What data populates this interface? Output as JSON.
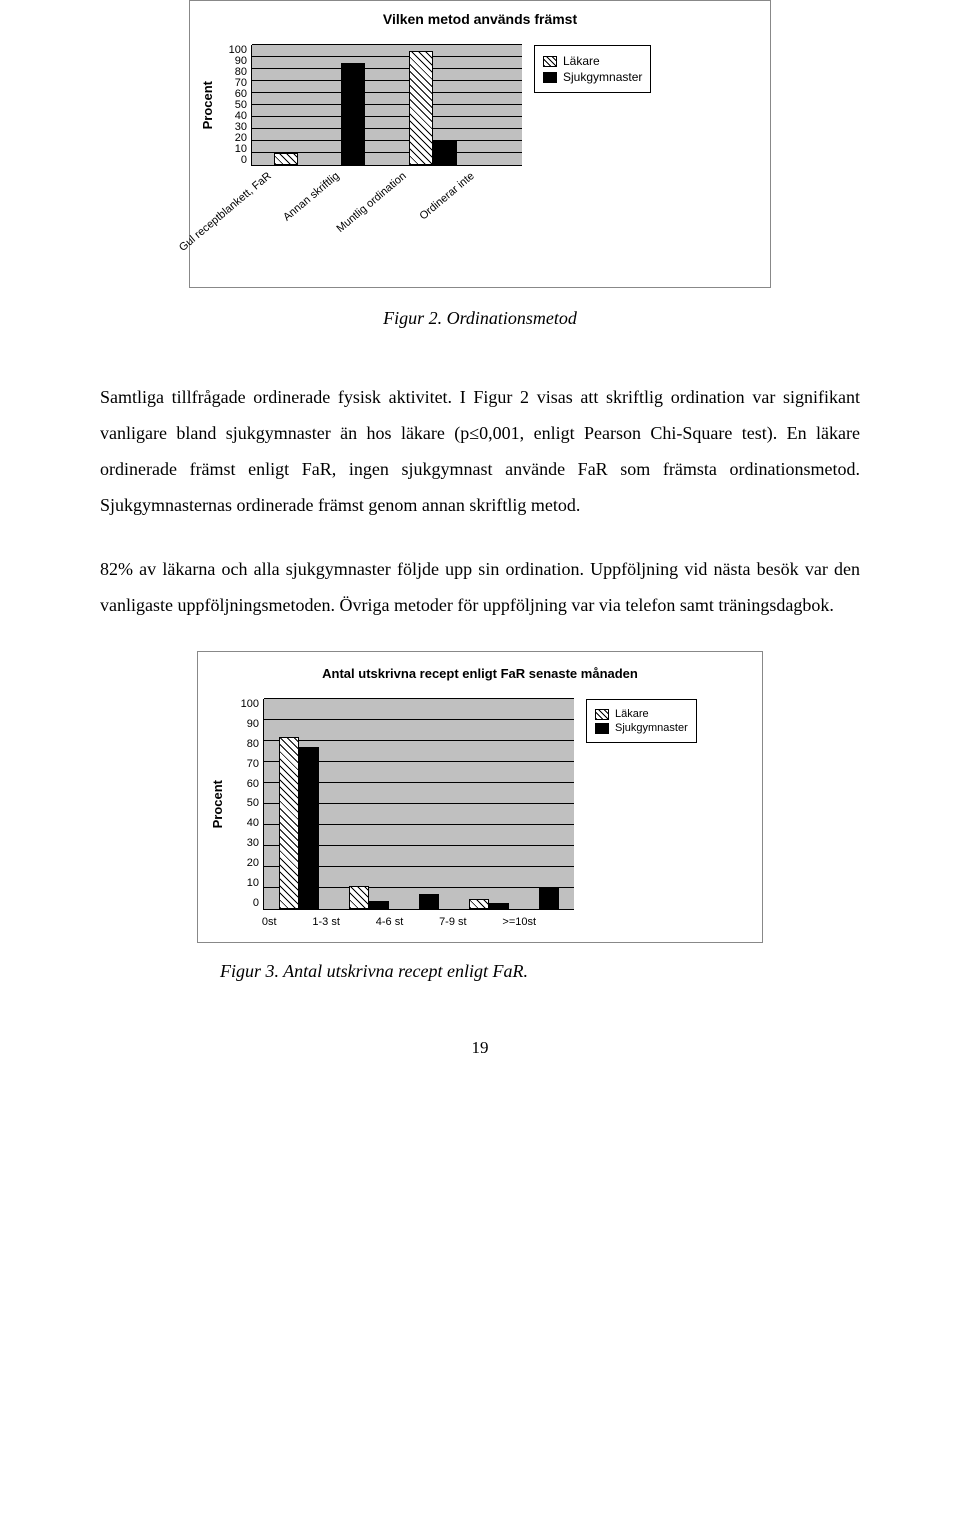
{
  "chart1": {
    "type": "bar",
    "title": "Vilken metod används främst",
    "ylabel": "Procent",
    "ylim": [
      0,
      100
    ],
    "ytick_step": 10,
    "yticks": [
      "100",
      "90",
      "80",
      "70",
      "60",
      "50",
      "40",
      "30",
      "20",
      "10",
      "0"
    ],
    "categories": [
      "Gul receptblankett, FaR",
      "Annan skriftlig",
      "Muntlig ordination",
      "Ordinerar inte"
    ],
    "series": [
      {
        "name": "Läkare",
        "style": "hatched",
        "values": [
          10,
          0,
          95,
          0
        ]
      },
      {
        "name": "Sjukgymnaster",
        "style": "solid",
        "values": [
          0,
          85,
          20,
          0
        ]
      }
    ],
    "plot_background": "#c0c0c0",
    "legend_items": [
      "Läkare",
      "Sjukgymnaster"
    ]
  },
  "caption1": "Figur 2. Ordinationsmetod",
  "para1": "Samtliga tillfrågade ordinerade fysisk aktivitet. I Figur 2 visas att skriftlig ordination var signifikant vanligare bland sjukgymnaster än hos läkare (p≤0,001, enligt Pearson Chi-Square test). En läkare ordinerade främst enligt FaR, ingen sjukgymnast använde FaR som främsta ordinationsmetod. Sjukgymnasternas ordinerade främst genom annan skriftlig metod.",
  "para2": "82% av läkarna och alla sjukgymnaster följde upp sin ordination. Uppföljning vid nästa besök var den vanligaste uppföljningsmetoden. Övriga metoder för uppföljning var via telefon samt träningsdagbok.",
  "chart2": {
    "type": "bar",
    "title": "Antal utskrivna recept enligt FaR senaste månaden",
    "ylabel": "Procent",
    "ylim": [
      0,
      100
    ],
    "ytick_step": 10,
    "yticks": [
      "100",
      "90",
      "80",
      "70",
      "60",
      "50",
      "40",
      "30",
      "20",
      "10",
      "0"
    ],
    "categories": [
      "0st",
      "1-3 st",
      "4-6 st",
      "7-9 st",
      ">=10st"
    ],
    "series": [
      {
        "name": "Läkare",
        "style": "hatched",
        "values": [
          82,
          11,
          0,
          5,
          0
        ]
      },
      {
        "name": "Sjukgymnaster",
        "style": "solid",
        "values": [
          77,
          4,
          7,
          3,
          10
        ]
      }
    ],
    "plot_background": "#c0c0c0",
    "legend_items": [
      "Läkare",
      "Sjukgymnaster"
    ]
  },
  "caption2": "Figur 3. Antal utskrivna recept enligt FaR.",
  "page_number": "19"
}
